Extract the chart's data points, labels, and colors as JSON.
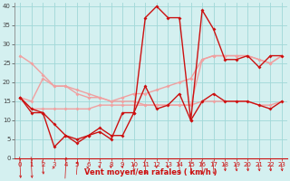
{
  "xlabel": "Vent moyen/en rafales ( km/h )",
  "x_ticks": [
    0,
    1,
    2,
    3,
    4,
    5,
    6,
    7,
    8,
    9,
    10,
    11,
    12,
    13,
    14,
    15,
    16,
    17,
    18,
    19,
    20,
    21,
    22,
    23
  ],
  "ylim": [
    0,
    41
  ],
  "yticks": [
    0,
    5,
    10,
    15,
    20,
    25,
    30,
    35,
    40
  ],
  "background_color": "#d4f0f0",
  "grid_color": "#a0d8d8",
  "series": [
    {
      "y": [
        27,
        25,
        22,
        19,
        19,
        18,
        17,
        16,
        15,
        15,
        15,
        14,
        14,
        14,
        14,
        14,
        26,
        27,
        27,
        27,
        27,
        26,
        25,
        27
      ],
      "color": "#f0a0a0",
      "lw": 1.0,
      "marker": "D",
      "ms": 2.0
    },
    {
      "y": [
        16,
        15,
        21,
        19,
        19,
        17,
        16,
        16,
        15,
        16,
        17,
        17,
        18,
        19,
        20,
        21,
        26,
        27,
        27,
        27,
        27,
        26,
        25,
        27
      ],
      "color": "#f0a0a0",
      "lw": 1.0,
      "marker": "D",
      "ms": 2.0
    },
    {
      "y": [
        16,
        13,
        13,
        13,
        13,
        13,
        13,
        14,
        14,
        14,
        14,
        14,
        14,
        14,
        14,
        14,
        15,
        15,
        15,
        15,
        15,
        14,
        14,
        15
      ],
      "color": "#f0a0a0",
      "lw": 1.0,
      "marker": "D",
      "ms": 2.0
    },
    {
      "y": [
        16,
        13,
        12,
        9,
        6,
        5,
        6,
        8,
        6,
        6,
        12,
        19,
        13,
        14,
        17,
        10,
        15,
        17,
        15,
        15,
        15,
        14,
        13,
        15
      ],
      "color": "#cc1111",
      "lw": 1.0,
      "marker": "D",
      "ms": 2.0
    },
    {
      "y": [
        16,
        12,
        12,
        3,
        6,
        4,
        6,
        7,
        5,
        12,
        12,
        37,
        40,
        37,
        37,
        10,
        39,
        34,
        26,
        26,
        27,
        24,
        27,
        27
      ],
      "color": "#cc1111",
      "lw": 1.0,
      "marker": "D",
      "ms": 2.0
    }
  ],
  "arrow_angles": [
    45,
    45,
    60,
    90,
    135,
    120,
    90,
    80,
    80,
    80,
    70,
    60,
    80,
    80,
    60,
    60,
    60,
    60,
    70,
    70,
    70,
    70,
    70,
    70
  ]
}
